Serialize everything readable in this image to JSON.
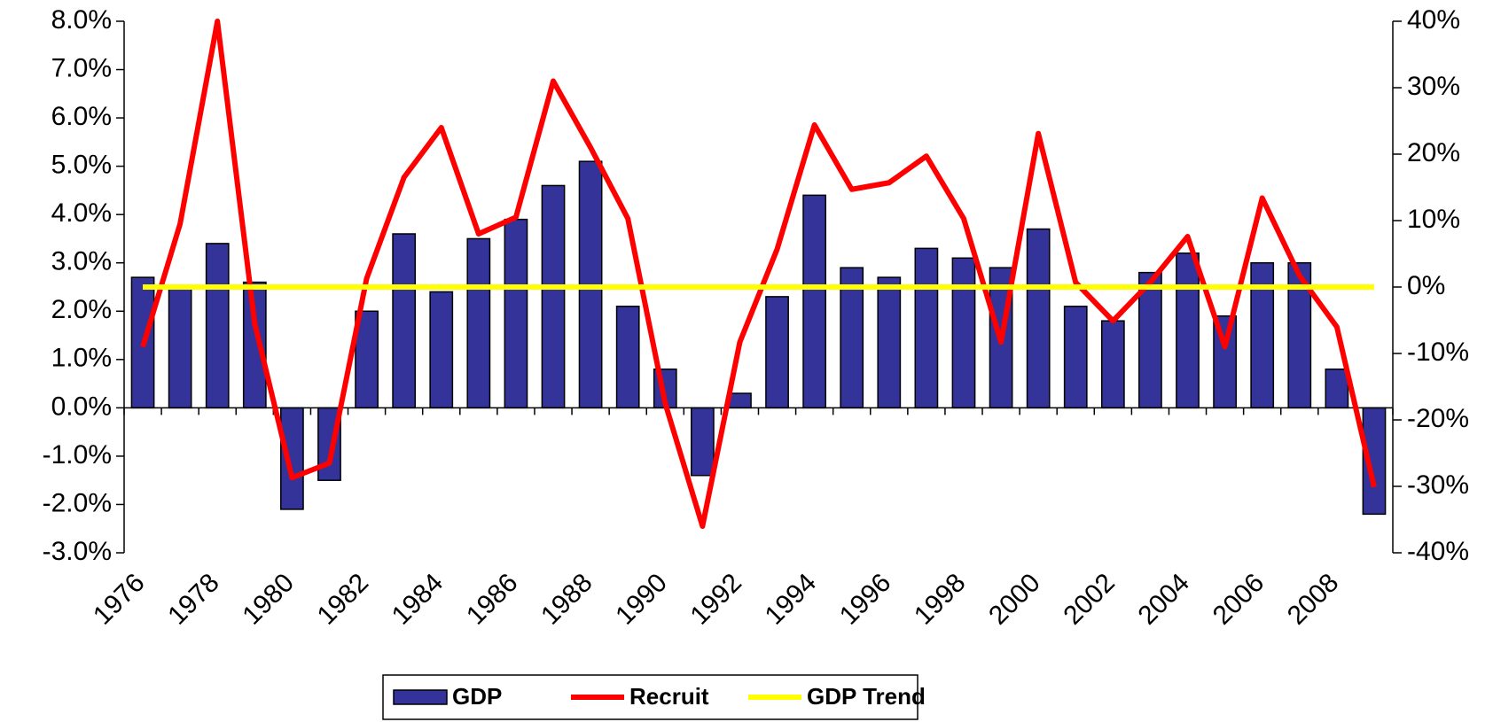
{
  "chart_data": {
    "type": "bar",
    "categories": [
      "1976",
      null,
      "1978",
      null,
      "1980",
      null,
      "1982",
      null,
      "1984",
      null,
      "1986",
      null,
      "1988",
      null,
      "1990",
      null,
      "1992",
      null,
      "1994",
      null,
      "1996",
      null,
      "1998",
      null,
      "2000",
      null,
      "2002",
      null,
      "2004",
      null,
      "2006",
      null,
      "2008",
      null
    ],
    "series": [
      {
        "name": "GDP",
        "type": "bar",
        "color": "#333399",
        "axis": "y",
        "values": [
          2.7,
          2.5,
          3.4,
          2.6,
          -2.1,
          -1.5,
          2.0,
          3.6,
          2.4,
          3.5,
          3.9,
          4.6,
          5.1,
          2.1,
          0.8,
          -1.4,
          0.3,
          2.3,
          4.4,
          2.9,
          2.7,
          3.3,
          3.1,
          2.9,
          3.7,
          2.1,
          1.8,
          2.8,
          3.2,
          1.9,
          3.0,
          3.0,
          0.8,
          -2.2
        ]
      },
      {
        "name": "Recruit",
        "type": "line",
        "color": "#ff0000",
        "axis": "y2",
        "values": [
          -9,
          9.5,
          40,
          -5.5,
          -28.7,
          -26.5,
          1.3,
          16.5,
          24,
          8,
          10.5,
          31,
          21,
          10.3,
          -17.5,
          -36,
          -8.3,
          5.7,
          24.4,
          14.7,
          15.7,
          19.7,
          10.3,
          -8.3,
          23.1,
          0.7,
          -5.1,
          0.7,
          7.6,
          -9,
          13.4,
          1.7,
          -6,
          -30.1
        ]
      },
      {
        "name": "GDP Trend",
        "type": "line",
        "color": "#ffff00",
        "axis": "y",
        "values": [
          2.5,
          2.5,
          2.5,
          2.5,
          2.5,
          2.5,
          2.5,
          2.5,
          2.5,
          2.5,
          2.5,
          2.5,
          2.5,
          2.5,
          2.5,
          2.5,
          2.5,
          2.5,
          2.5,
          2.5,
          2.5,
          2.5,
          2.5,
          2.5,
          2.5,
          2.5,
          2.5,
          2.5,
          2.5,
          2.5,
          2.5,
          2.5,
          2.5,
          2.5
        ]
      }
    ],
    "ylim": [
      -3,
      8
    ],
    "yticks": [
      {
        "value": -3,
        "label": "-3.0%"
      },
      {
        "value": -2,
        "label": "-2.0%"
      },
      {
        "value": -1,
        "label": "-1.0%"
      },
      {
        "value": 0,
        "label": "0.0%"
      },
      {
        "value": 1,
        "label": "1.0%"
      },
      {
        "value": 2,
        "label": "2.0%"
      },
      {
        "value": 3,
        "label": "3.0%"
      },
      {
        "value": 4,
        "label": "4.0%"
      },
      {
        "value": 5,
        "label": "5.0%"
      },
      {
        "value": 6,
        "label": "6.0%"
      },
      {
        "value": 7,
        "label": "7.0%"
      },
      {
        "value": 8,
        "label": "8.0%"
      }
    ],
    "y2lim": [
      -40,
      40
    ],
    "y2ticks": [
      {
        "value": -40,
        "label": "-40%"
      },
      {
        "value": -30,
        "label": "-30%"
      },
      {
        "value": -20,
        "label": "-20%"
      },
      {
        "value": -10,
        "label": "-10%"
      },
      {
        "value": 0,
        "label": "0%"
      },
      {
        "value": 10,
        "label": "10%"
      },
      {
        "value": 20,
        "label": "20%"
      },
      {
        "value": 30,
        "label": "30%"
      },
      {
        "value": 40,
        "label": "40%"
      }
    ],
    "grid": false,
    "legend": "bottom"
  }
}
